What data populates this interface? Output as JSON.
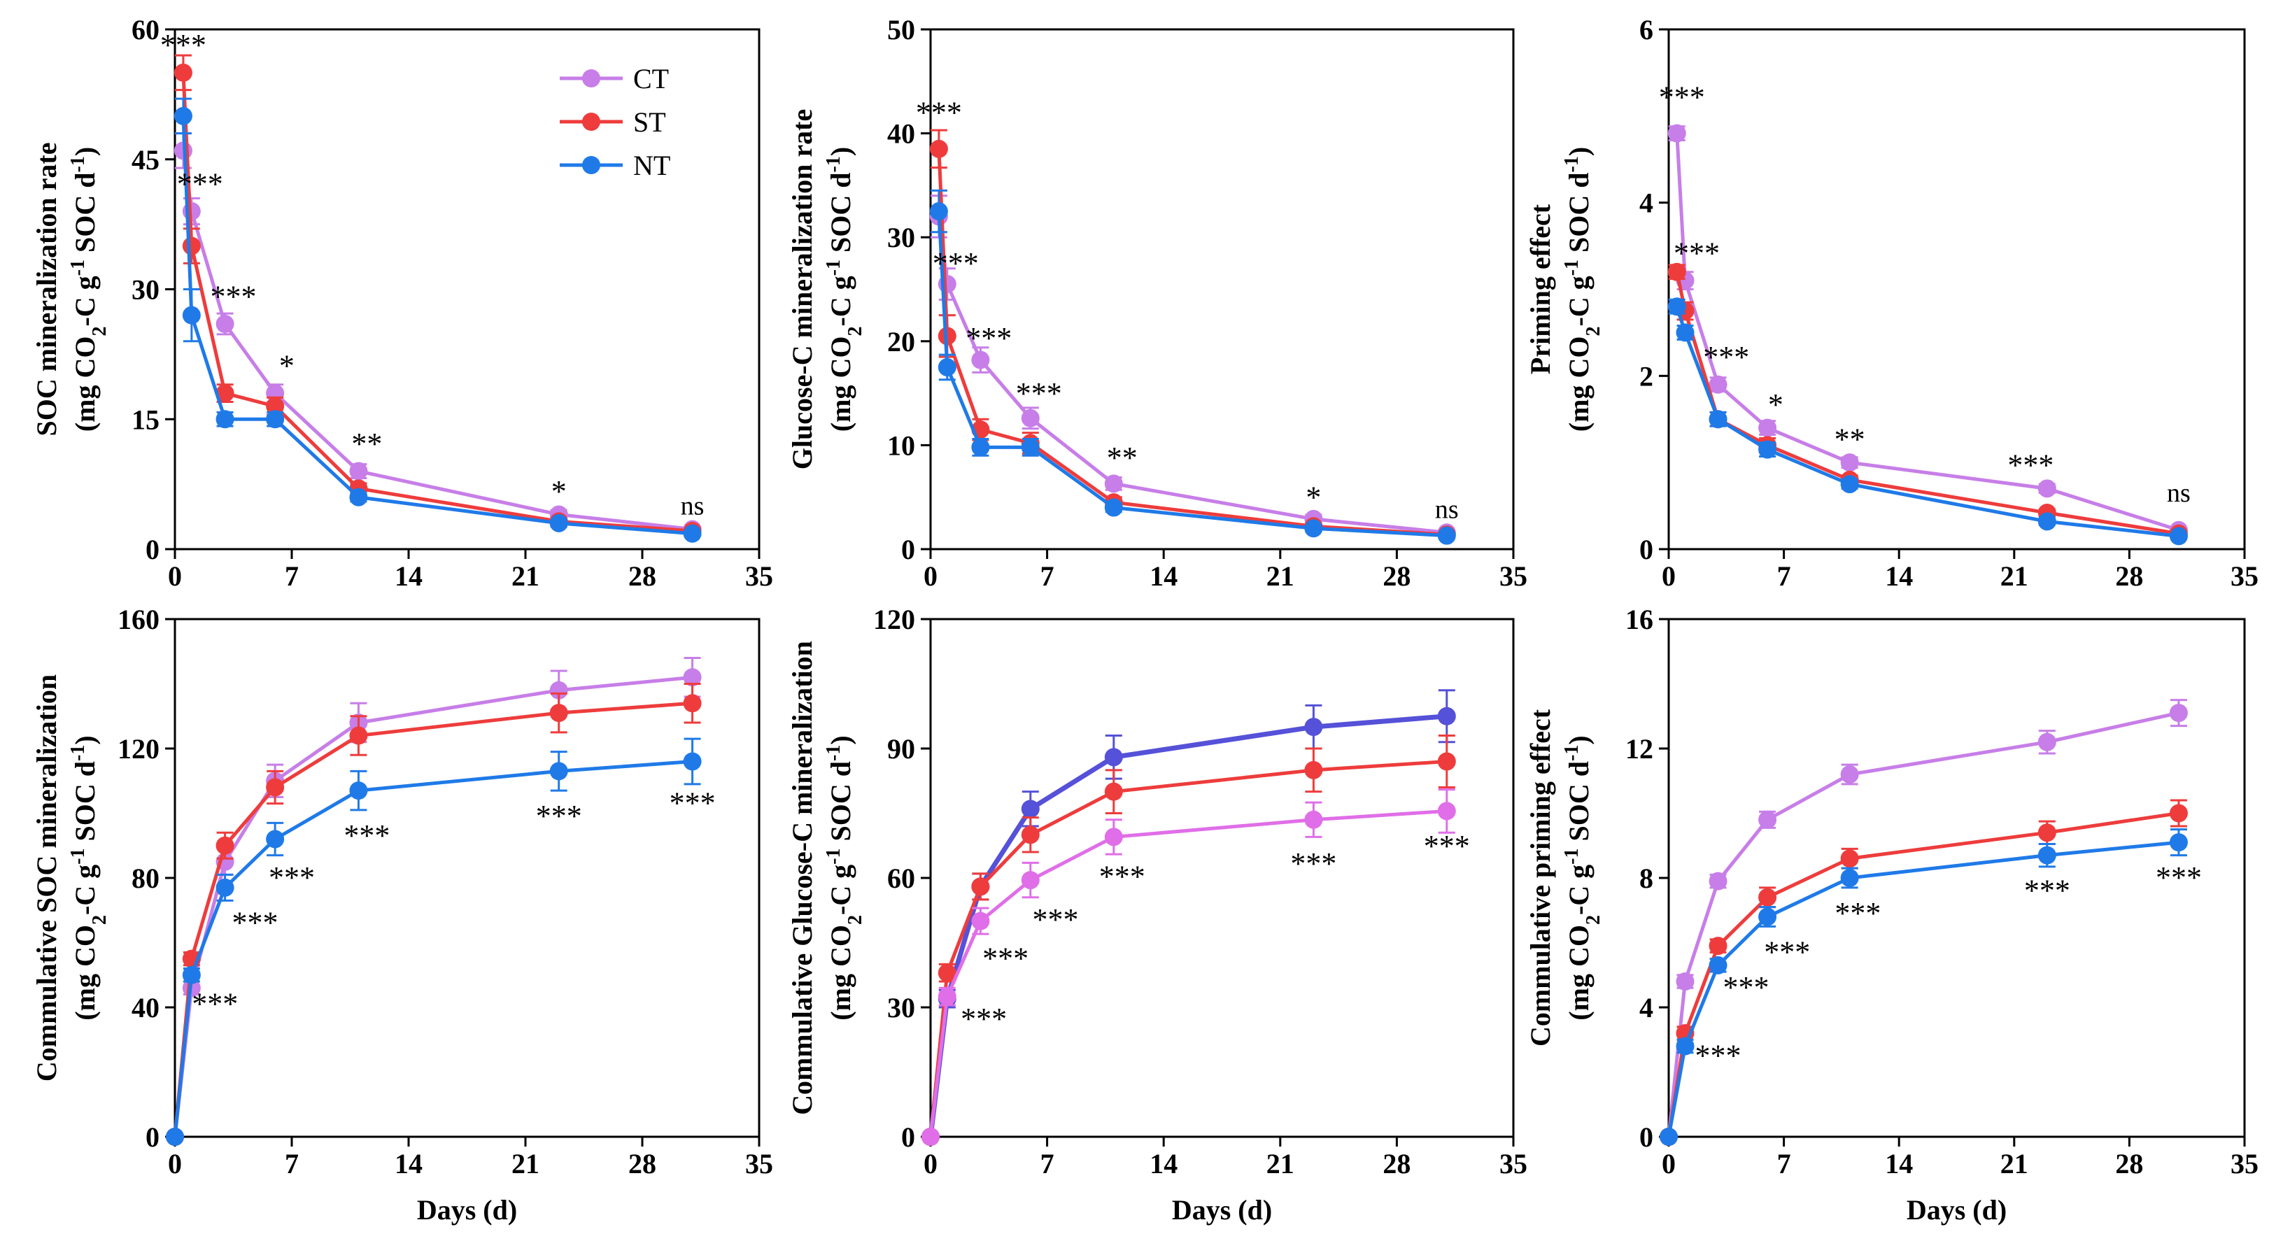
{
  "figure": {
    "colors": {
      "CT": "#c77ee8",
      "ST": "#ee3c3c",
      "NT": "#1f7ae8",
      "NT_dark": "#5551d8",
      "CT_magenta": "#e06ee8"
    },
    "legend": [
      "CT",
      "ST",
      "NT"
    ]
  },
  "chart_data": [
    {
      "id": "soc-rate",
      "type": "line",
      "xlabel": "",
      "ylabel_lines": [
        "SOC mineralization rate",
        "(mg CO2-C g-1 SOC d-1)"
      ],
      "xlim": [
        0,
        35
      ],
      "ylim": [
        0,
        60
      ],
      "xticks": [
        "0",
        "7",
        "14",
        "21",
        "28",
        "35"
      ],
      "yticks": [
        "0",
        "15",
        "30",
        "45",
        "60"
      ],
      "x": [
        0.5,
        1,
        3,
        6,
        11,
        23,
        31
      ],
      "series": [
        {
          "name": "CT",
          "values": [
            46,
            39,
            26,
            18,
            9,
            4,
            2.3
          ],
          "err": [
            2,
            1.5,
            1.2,
            1,
            0.8,
            0.5,
            0.3
          ]
        },
        {
          "name": "ST",
          "values": [
            55,
            35,
            18,
            16.5,
            7,
            3.2,
            2.1
          ],
          "err": [
            2,
            2,
            1,
            1,
            0.6,
            0.4,
            0.3
          ]
        },
        {
          "name": "NT",
          "values": [
            50,
            27,
            15,
            15,
            6,
            3,
            1.8
          ],
          "err": [
            2,
            3,
            0.8,
            0.8,
            0.5,
            0.4,
            0.3
          ]
        }
      ],
      "annotations": [
        {
          "x": 0.5,
          "y": 57,
          "text": "***"
        },
        {
          "x": 1.5,
          "y": 41,
          "text": "***"
        },
        {
          "x": 3.5,
          "y": 28,
          "text": "***"
        },
        {
          "x": 6.7,
          "y": 20,
          "text": "*"
        },
        {
          "x": 11.5,
          "y": 11,
          "text": "**"
        },
        {
          "x": 23,
          "y": 5.5,
          "text": "*"
        },
        {
          "x": 31,
          "y": 4,
          "text": "ns"
        }
      ]
    },
    {
      "id": "glucose-rate",
      "type": "line",
      "xlabel": "",
      "ylabel_lines": [
        "Glucose-C mineralization rate",
        "(mg CO2-C g-1 SOC d-1)"
      ],
      "xlim": [
        0,
        35
      ],
      "ylim": [
        0,
        50
      ],
      "xticks": [
        "0",
        "7",
        "14",
        "21",
        "28",
        "35"
      ],
      "yticks": [
        "0",
        "10",
        "20",
        "30",
        "40",
        "50"
      ],
      "x": [
        0.5,
        1,
        3,
        6,
        11,
        23,
        31
      ],
      "series": [
        {
          "name": "CT",
          "values": [
            32,
            25.5,
            18.2,
            12.6,
            6.3,
            2.9,
            1.6
          ],
          "err": [
            2,
            1.5,
            1.2,
            1,
            0.6,
            0.4,
            0.2
          ]
        },
        {
          "name": "ST",
          "values": [
            38.5,
            20.5,
            11.5,
            10.2,
            4.5,
            2.2,
            1.4
          ],
          "err": [
            1.8,
            2,
            1,
            1,
            0.5,
            0.3,
            0.2
          ]
        },
        {
          "name": "NT",
          "values": [
            32.5,
            17.5,
            9.8,
            9.8,
            4,
            2,
            1.3
          ],
          "err": [
            2,
            1.2,
            0.8,
            0.8,
            0.4,
            0.3,
            0.2
          ]
        }
      ],
      "annotations": [
        {
          "x": 0.5,
          "y": 41,
          "text": "***"
        },
        {
          "x": 1.5,
          "y": 26.5,
          "text": "***"
        },
        {
          "x": 3.5,
          "y": 19.3,
          "text": "***"
        },
        {
          "x": 6.5,
          "y": 14,
          "text": "***"
        },
        {
          "x": 11.5,
          "y": 7.8,
          "text": "**"
        },
        {
          "x": 23,
          "y": 4,
          "text": "*"
        },
        {
          "x": 31,
          "y": 3,
          "text": "ns"
        }
      ]
    },
    {
      "id": "priming-effect",
      "type": "line",
      "xlabel": "",
      "ylabel_lines": [
        "Priming effect",
        "(mg CO2-C g-1 SOC d-1)"
      ],
      "xlim": [
        0,
        35
      ],
      "ylim": [
        0,
        6
      ],
      "xticks": [
        "0",
        "7",
        "14",
        "21",
        "28",
        "35"
      ],
      "yticks": [
        "0",
        "2",
        "4",
        "6"
      ],
      "x": [
        0.5,
        1,
        3,
        6,
        11,
        23,
        31
      ],
      "series": [
        {
          "name": "CT",
          "values": [
            4.8,
            3.1,
            1.9,
            1.4,
            1,
            0.7,
            0.22
          ],
          "err": [
            0.08,
            0.1,
            0.08,
            0.08,
            0.06,
            0.05,
            0.03
          ]
        },
        {
          "name": "ST",
          "values": [
            3.2,
            2.75,
            1.5,
            1.2,
            0.8,
            0.42,
            0.18
          ],
          "err": [
            0.08,
            0.1,
            0.08,
            0.08,
            0.05,
            0.04,
            0.03
          ]
        },
        {
          "name": "NT",
          "values": [
            2.8,
            2.5,
            1.5,
            1.15,
            0.75,
            0.32,
            0.15
          ],
          "err": [
            0.08,
            0.08,
            0.08,
            0.08,
            0.05,
            0.04,
            0.03
          ]
        }
      ],
      "annotations": [
        {
          "x": 0.8,
          "y": 5.1,
          "text": "***"
        },
        {
          "x": 1.7,
          "y": 3.3,
          "text": "***"
        },
        {
          "x": 3.5,
          "y": 2.1,
          "text": "***"
        },
        {
          "x": 6.5,
          "y": 1.55,
          "text": "*"
        },
        {
          "x": 11,
          "y": 1.15,
          "text": "**"
        },
        {
          "x": 22,
          "y": 0.85,
          "text": "***"
        },
        {
          "x": 31,
          "y": 0.55,
          "text": "ns"
        }
      ]
    },
    {
      "id": "cum-soc",
      "type": "line",
      "xlabel": "Days (d)",
      "ylabel_lines": [
        "Commulative SOC mineralization",
        "(mg CO2-C g-1 SOC d-1)"
      ],
      "xlim": [
        0,
        35
      ],
      "ylim": [
        0,
        160
      ],
      "xticks": [
        "0",
        "7",
        "14",
        "21",
        "28",
        "35"
      ],
      "yticks": [
        "0",
        "40",
        "80",
        "120",
        "160"
      ],
      "x": [
        0,
        1,
        3,
        6,
        11,
        23,
        31
      ],
      "series": [
        {
          "name": "CT",
          "values": [
            0,
            46,
            85,
            110,
            128,
            138,
            142
          ],
          "err": [
            0,
            2,
            4,
            5,
            6,
            6,
            6
          ]
        },
        {
          "name": "ST",
          "values": [
            0,
            55,
            90,
            108,
            124,
            131,
            134
          ],
          "err": [
            0,
            2,
            4,
            5,
            6,
            6,
            6
          ]
        },
        {
          "name": "NT",
          "values": [
            0,
            50,
            77,
            92,
            107,
            113,
            116
          ],
          "err": [
            0,
            2,
            4,
            5,
            6,
            6,
            7
          ]
        }
      ],
      "annotations": [
        {
          "x": 2.4,
          "y": 38,
          "text": "***"
        },
        {
          "x": 4.8,
          "y": 63,
          "text": "***"
        },
        {
          "x": 7,
          "y": 77,
          "text": "***"
        },
        {
          "x": 11.5,
          "y": 90,
          "text": "***"
        },
        {
          "x": 23,
          "y": 96,
          "text": "***"
        },
        {
          "x": 31,
          "y": 100,
          "text": "***"
        }
      ]
    },
    {
      "id": "cum-glucose",
      "type": "line",
      "xlabel": "Days (d)",
      "ylabel_lines": [
        "Commulative Glucose-C mineralization",
        "(mg CO2-C g-1 SOC d-1)"
      ],
      "xlim": [
        0,
        35
      ],
      "ylim": [
        0,
        120
      ],
      "xticks": [
        "0",
        "7",
        "14",
        "21",
        "28",
        "35"
      ],
      "yticks": [
        "0",
        "30",
        "60",
        "90",
        "120"
      ],
      "x": [
        0,
        1,
        3,
        6,
        11,
        23,
        31
      ],
      "series": [
        {
          "name": "NT",
          "values": [
            0,
            32,
            58,
            76,
            88,
            95,
            97.5
          ],
          "err": [
            0,
            2,
            3,
            4,
            5,
            5,
            6
          ]
        },
        {
          "name": "ST",
          "values": [
            0,
            38,
            58,
            70,
            80,
            85,
            87
          ],
          "err": [
            0,
            2,
            3,
            4,
            5,
            5,
            6
          ]
        },
        {
          "name": "CT",
          "values": [
            0,
            32.5,
            50,
            59.5,
            69.5,
            73.5,
            75.5
          ],
          "err": [
            0,
            2,
            3,
            4,
            4,
            4,
            5
          ]
        }
      ],
      "annotations": [
        {
          "x": 3.2,
          "y": 25,
          "text": "***"
        },
        {
          "x": 4.5,
          "y": 39,
          "text": "***"
        },
        {
          "x": 7.5,
          "y": 48,
          "text": "***"
        },
        {
          "x": 11.5,
          "y": 58,
          "text": "***"
        },
        {
          "x": 23,
          "y": 61,
          "text": "***"
        },
        {
          "x": 31,
          "y": 65,
          "text": "***"
        }
      ]
    },
    {
      "id": "cum-priming",
      "type": "line",
      "xlabel": "Days (d)",
      "ylabel_lines": [
        "Commulative priming effect",
        "(mg CO2-C g-1 SOC d-1)"
      ],
      "xlim": [
        0,
        35
      ],
      "ylim": [
        0,
        16
      ],
      "xticks": [
        "0",
        "7",
        "14",
        "21",
        "28",
        "35"
      ],
      "yticks": [
        "0",
        "4",
        "8",
        "12",
        "16"
      ],
      "x": [
        0,
        1,
        3,
        6,
        11,
        23,
        31
      ],
      "series": [
        {
          "name": "CT",
          "values": [
            0,
            4.8,
            7.9,
            9.8,
            11.2,
            12.2,
            13.1
          ],
          "err": [
            0,
            0.2,
            0.2,
            0.25,
            0.3,
            0.35,
            0.4
          ]
        },
        {
          "name": "ST",
          "values": [
            0,
            3.2,
            5.9,
            7.4,
            8.6,
            9.4,
            10
          ],
          "err": [
            0,
            0.2,
            0.2,
            0.3,
            0.3,
            0.35,
            0.4
          ]
        },
        {
          "name": "NT",
          "values": [
            0,
            2.8,
            5.3,
            6.8,
            8,
            8.7,
            9.1
          ],
          "err": [
            0,
            0.2,
            0.2,
            0.3,
            0.3,
            0.35,
            0.4
          ]
        }
      ],
      "annotations": [
        {
          "x": 3,
          "y": 2.2,
          "text": "***"
        },
        {
          "x": 4.7,
          "y": 4.3,
          "text": "***"
        },
        {
          "x": 7.2,
          "y": 5.4,
          "text": "***"
        },
        {
          "x": 11.5,
          "y": 6.6,
          "text": "***"
        },
        {
          "x": 23,
          "y": 7.3,
          "text": "***"
        },
        {
          "x": 31,
          "y": 7.7,
          "text": "***"
        }
      ]
    }
  ]
}
